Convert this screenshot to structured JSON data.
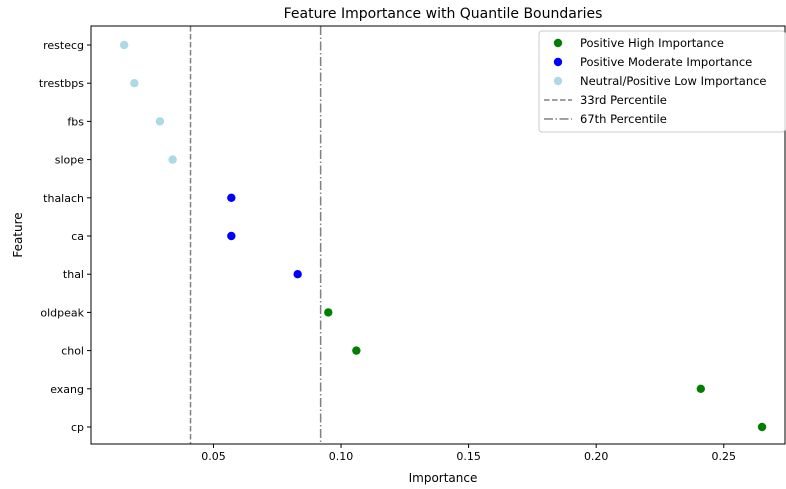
{
  "chart_data": {
    "type": "scatter",
    "title": "Feature Importance with Quantile Boundaries",
    "xlabel": "Importance",
    "ylabel": "Feature",
    "xlim": [
      0.002,
      0.274
    ],
    "x_ticks": [
      0.05,
      0.1,
      0.15,
      0.2,
      0.25
    ],
    "x_tick_labels": [
      "0.05",
      "0.10",
      "0.15",
      "0.20",
      "0.25"
    ],
    "categories": [
      "restecg",
      "trestbps",
      "fbs",
      "slope",
      "thalach",
      "ca",
      "thal",
      "oldpeak",
      "chol",
      "exang",
      "cp"
    ],
    "series": [
      {
        "name": "Positive High Importance",
        "color": "#008000",
        "points": [
          {
            "feature": "oldpeak",
            "x": 0.095
          },
          {
            "feature": "chol",
            "x": 0.106
          },
          {
            "feature": "exang",
            "x": 0.241
          },
          {
            "feature": "cp",
            "x": 0.265
          }
        ]
      },
      {
        "name": "Positive Moderate Importance",
        "color": "#0000ff",
        "points": [
          {
            "feature": "thalach",
            "x": 0.057
          },
          {
            "feature": "ca",
            "x": 0.057
          },
          {
            "feature": "thal",
            "x": 0.083
          }
        ]
      },
      {
        "name": "Neutral/Positive Low Importance",
        "color": "#add8e6",
        "points": [
          {
            "feature": "restecg",
            "x": 0.015
          },
          {
            "feature": "trestbps",
            "x": 0.019
          },
          {
            "feature": "fbs",
            "x": 0.029
          },
          {
            "feature": "slope",
            "x": 0.034
          }
        ]
      }
    ],
    "reference_lines": [
      {
        "name": "33rd Percentile",
        "x": 0.041,
        "style": "dashed",
        "color": "#808080"
      },
      {
        "name": "67th Percentile",
        "x": 0.092,
        "style": "dashdot",
        "color": "#808080"
      }
    ],
    "legend_position": "top-right",
    "grid": false
  }
}
